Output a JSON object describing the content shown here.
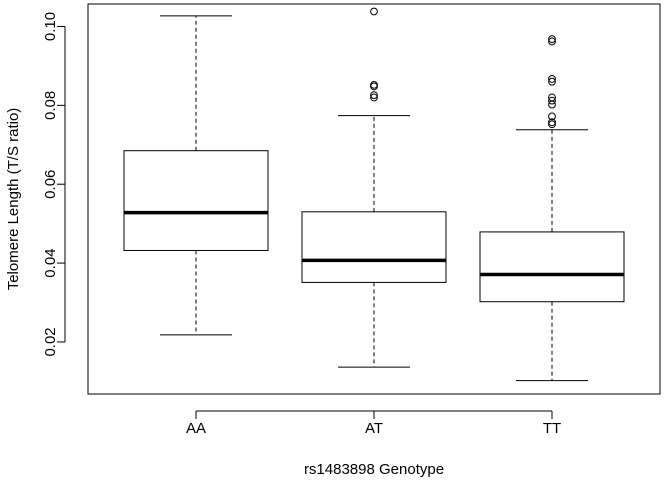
{
  "chart_data": {
    "type": "box",
    "title": "",
    "xlabel": "rs1483898 Genotype",
    "ylabel": "Telomere Length (T/S ratio)",
    "ylim": [
      0.0068,
      0.1057
    ],
    "yticks": [
      0.02,
      0.04,
      0.06,
      0.08,
      0.1
    ],
    "ytick_labels": [
      "0.02",
      "0.04",
      "0.06",
      "0.08",
      "0.10"
    ],
    "categories": [
      "AA",
      "AT",
      "TT"
    ],
    "boxes": [
      {
        "category": "AA",
        "whisker_low": 0.0218,
        "q1": 0.0432,
        "median": 0.0528,
        "q3": 0.0685,
        "whisker_high": 0.1027,
        "outliers": []
      },
      {
        "category": "AT",
        "whisker_low": 0.0136,
        "q1": 0.0351,
        "median": 0.0407,
        "q3": 0.053,
        "whisker_high": 0.0774,
        "outliers": [
          0.1038,
          0.0852,
          0.0848,
          0.0826,
          0.082
        ]
      },
      {
        "category": "TT",
        "whisker_low": 0.0102,
        "q1": 0.0302,
        "median": 0.0371,
        "q3": 0.0479,
        "whisker_high": 0.0738,
        "outliers": [
          0.0968,
          0.0962,
          0.0867,
          0.086,
          0.082,
          0.0812,
          0.0802,
          0.0772,
          0.0757,
          0.0752
        ]
      }
    ],
    "grid": false,
    "legend": "none"
  }
}
